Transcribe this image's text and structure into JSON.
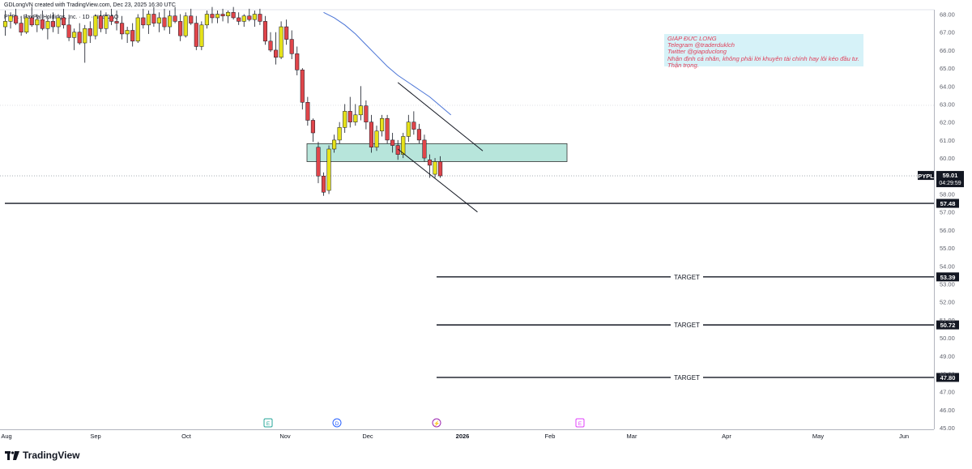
{
  "header": {
    "attribution": "GDLongVN created with TradingView.com, Dec 23, 2025 16:30 UTC",
    "symbol_line": "PYPL · PayPal Holdings, Inc. · 1D · NASDAQ"
  },
  "note": {
    "lines": [
      "GIÁP ĐỨC LONG",
      "Telegram @traderduklch",
      "Twitter @giapduclong",
      "Nhận định cá nhân, không phải lời khuyên tài chính hay lôi kéo đầu tư.",
      "Thận trọng."
    ]
  },
  "brand": {
    "name": "TradingView"
  },
  "colors": {
    "bull": "#e6e21a",
    "bear": "#e0454a",
    "ma": "#4a74d6",
    "zone": "#9fdccf",
    "line": "#131722"
  },
  "chart_data": {
    "type": "candlestick",
    "symbol": "PYPL",
    "timeframe": "1D",
    "exchange": "NASDAQ",
    "y_axis": {
      "range": [
        45,
        68
      ],
      "ticks": [
        "68.00",
        "67.00",
        "66.00",
        "65.00",
        "64.00",
        "63.00",
        "62.00",
        "61.00",
        "60.00",
        "59.00",
        "58.00",
        "57.00",
        "56.00",
        "55.00",
        "54.00",
        "53.00",
        "52.00",
        "51.00",
        "50.00",
        "49.00",
        "48.00",
        "47.00",
        "46.00",
        "45.00"
      ]
    },
    "x_axis": {
      "labels": [
        "Aug",
        "Sep",
        "Oct",
        "Nov",
        "Dec",
        "2026",
        "Feb",
        "Mar",
        "Apr",
        "May",
        "Jun"
      ]
    },
    "price_label": {
      "symbol": "PYPL",
      "price": "59.01",
      "countdown": "04:29:59",
      "value": 59.01
    },
    "horizontal_levels": [
      {
        "value": 57.48,
        "label": "57.48",
        "text": ""
      },
      {
        "value": 53.39,
        "label": "53.39",
        "text": "TARGET"
      },
      {
        "value": 50.72,
        "label": "50.72",
        "text": "TARGET"
      },
      {
        "value": 47.8,
        "label": "47.80",
        "text": "TARGET"
      }
    ],
    "zone": {
      "from": "Nov 7",
      "to": "Jan 26",
      "low": 59.8,
      "high": 60.8
    },
    "event_markers": [
      "E",
      "D",
      "⚡",
      "E"
    ],
    "candles": [
      {
        "o": 67.3,
        "h": 68.2,
        "l": 66.8,
        "c": 67.6
      },
      {
        "o": 67.6,
        "h": 68.1,
        "l": 67.2,
        "c": 67.9
      },
      {
        "o": 67.9,
        "h": 68.3,
        "l": 67.4,
        "c": 67.5
      },
      {
        "o": 67.5,
        "h": 67.9,
        "l": 66.8,
        "c": 67.0
      },
      {
        "o": 67.0,
        "h": 68.0,
        "l": 66.9,
        "c": 67.8
      },
      {
        "o": 67.8,
        "h": 68.4,
        "l": 67.3,
        "c": 67.4
      },
      {
        "o": 67.4,
        "h": 68.0,
        "l": 67.0,
        "c": 67.7
      },
      {
        "o": 67.7,
        "h": 68.2,
        "l": 67.1,
        "c": 67.2
      },
      {
        "o": 67.2,
        "h": 67.9,
        "l": 66.6,
        "c": 67.6
      },
      {
        "o": 67.6,
        "h": 68.1,
        "l": 67.0,
        "c": 67.3
      },
      {
        "o": 67.3,
        "h": 68.0,
        "l": 66.9,
        "c": 67.8
      },
      {
        "o": 67.8,
        "h": 68.3,
        "l": 67.2,
        "c": 67.4
      },
      {
        "o": 67.4,
        "h": 67.8,
        "l": 66.5,
        "c": 66.7
      },
      {
        "o": 66.7,
        "h": 67.2,
        "l": 66.0,
        "c": 67.0
      },
      {
        "o": 67.0,
        "h": 67.5,
        "l": 66.3,
        "c": 66.4
      },
      {
        "o": 66.4,
        "h": 67.4,
        "l": 65.3,
        "c": 67.2
      },
      {
        "o": 67.2,
        "h": 67.6,
        "l": 66.4,
        "c": 66.8
      },
      {
        "o": 66.8,
        "h": 68.0,
        "l": 66.6,
        "c": 67.9
      },
      {
        "o": 67.9,
        "h": 68.2,
        "l": 67.0,
        "c": 67.2
      },
      {
        "o": 67.2,
        "h": 68.1,
        "l": 66.9,
        "c": 67.9
      },
      {
        "o": 67.9,
        "h": 68.3,
        "l": 67.4,
        "c": 67.6
      },
      {
        "o": 67.6,
        "h": 68.2,
        "l": 67.1,
        "c": 67.5
      },
      {
        "o": 67.5,
        "h": 67.9,
        "l": 66.6,
        "c": 66.9
      },
      {
        "o": 66.9,
        "h": 67.3,
        "l": 66.4,
        "c": 67.1
      },
      {
        "o": 67.1,
        "h": 67.5,
        "l": 66.2,
        "c": 66.5
      },
      {
        "o": 66.5,
        "h": 68.0,
        "l": 66.4,
        "c": 67.8
      },
      {
        "o": 67.8,
        "h": 68.3,
        "l": 67.2,
        "c": 67.4
      },
      {
        "o": 67.4,
        "h": 68.2,
        "l": 66.9,
        "c": 68.0
      },
      {
        "o": 68.0,
        "h": 68.4,
        "l": 67.3,
        "c": 67.5
      },
      {
        "o": 67.5,
        "h": 68.1,
        "l": 67.0,
        "c": 67.8
      },
      {
        "o": 67.8,
        "h": 68.3,
        "l": 67.1,
        "c": 67.3
      },
      {
        "o": 67.3,
        "h": 68.2,
        "l": 66.9,
        "c": 67.9
      },
      {
        "o": 67.9,
        "h": 68.4,
        "l": 67.5,
        "c": 67.6
      },
      {
        "o": 67.6,
        "h": 68.0,
        "l": 66.5,
        "c": 66.8
      },
      {
        "o": 66.8,
        "h": 68.1,
        "l": 66.7,
        "c": 67.9
      },
      {
        "o": 67.9,
        "h": 68.3,
        "l": 67.4,
        "c": 67.5
      },
      {
        "o": 67.5,
        "h": 67.9,
        "l": 66.0,
        "c": 66.2
      },
      {
        "o": 66.2,
        "h": 67.6,
        "l": 66.0,
        "c": 67.4
      },
      {
        "o": 67.4,
        "h": 68.2,
        "l": 67.2,
        "c": 68.0
      },
      {
        "o": 68.0,
        "h": 68.4,
        "l": 67.5,
        "c": 67.8
      },
      {
        "o": 67.8,
        "h": 68.2,
        "l": 67.5,
        "c": 68.0
      },
      {
        "o": 68.0,
        "h": 68.3,
        "l": 67.6,
        "c": 67.9
      },
      {
        "o": 67.9,
        "h": 68.2,
        "l": 67.5,
        "c": 68.1
      },
      {
        "o": 68.1,
        "h": 68.4,
        "l": 67.7,
        "c": 67.8
      },
      {
        "o": 67.8,
        "h": 68.1,
        "l": 67.4,
        "c": 67.6
      },
      {
        "o": 67.6,
        "h": 68.0,
        "l": 67.3,
        "c": 67.9
      },
      {
        "o": 67.9,
        "h": 68.3,
        "l": 67.6,
        "c": 67.7
      },
      {
        "o": 67.7,
        "h": 68.2,
        "l": 67.3,
        "c": 68.0
      },
      {
        "o": 68.0,
        "h": 68.3,
        "l": 67.4,
        "c": 67.6
      },
      {
        "o": 67.6,
        "h": 67.9,
        "l": 66.3,
        "c": 66.5
      },
      {
        "o": 66.5,
        "h": 67.0,
        "l": 65.9,
        "c": 66.0
      },
      {
        "o": 66.0,
        "h": 67.0,
        "l": 65.2,
        "c": 65.6
      },
      {
        "o": 65.6,
        "h": 67.6,
        "l": 65.5,
        "c": 67.3
      },
      {
        "o": 67.3,
        "h": 67.7,
        "l": 66.3,
        "c": 66.6
      },
      {
        "o": 66.6,
        "h": 67.1,
        "l": 65.5,
        "c": 65.8
      },
      {
        "o": 65.8,
        "h": 66.2,
        "l": 64.6,
        "c": 64.9
      },
      {
        "o": 64.9,
        "h": 65.0,
        "l": 62.7,
        "c": 63.1
      },
      {
        "o": 63.1,
        "h": 63.4,
        "l": 61.8,
        "c": 62.1
      },
      {
        "o": 62.1,
        "h": 62.2,
        "l": 60.9,
        "c": 61.4
      },
      {
        "o": 60.6,
        "h": 60.9,
        "l": 58.6,
        "c": 59.0
      },
      {
        "o": 59.0,
        "h": 59.2,
        "l": 57.9,
        "c": 58.1
      },
      {
        "o": 58.2,
        "h": 60.7,
        "l": 58.0,
        "c": 60.5
      },
      {
        "o": 60.5,
        "h": 61.3,
        "l": 60.3,
        "c": 61.0
      },
      {
        "o": 61.0,
        "h": 62.0,
        "l": 60.8,
        "c": 61.7
      },
      {
        "o": 61.7,
        "h": 63.0,
        "l": 61.4,
        "c": 62.6
      },
      {
        "o": 62.6,
        "h": 63.4,
        "l": 61.7,
        "c": 62.0
      },
      {
        "o": 62.0,
        "h": 63.0,
        "l": 61.8,
        "c": 62.4
      },
      {
        "o": 62.4,
        "h": 64.0,
        "l": 62.1,
        "c": 62.9
      },
      {
        "o": 62.9,
        "h": 63.2,
        "l": 61.6,
        "c": 62.0
      },
      {
        "o": 62.0,
        "h": 62.4,
        "l": 60.3,
        "c": 60.6
      },
      {
        "o": 60.6,
        "h": 61.8,
        "l": 60.4,
        "c": 61.5
      },
      {
        "o": 61.5,
        "h": 62.4,
        "l": 61.2,
        "c": 62.2
      },
      {
        "o": 62.2,
        "h": 62.4,
        "l": 60.8,
        "c": 61.0
      },
      {
        "o": 61.0,
        "h": 61.4,
        "l": 60.3,
        "c": 60.7
      },
      {
        "o": 60.7,
        "h": 61.0,
        "l": 59.9,
        "c": 60.2
      },
      {
        "o": 60.2,
        "h": 61.4,
        "l": 60.0,
        "c": 61.2
      },
      {
        "o": 61.2,
        "h": 62.4,
        "l": 60.9,
        "c": 62.0
      },
      {
        "o": 62.0,
        "h": 62.6,
        "l": 61.3,
        "c": 61.6
      },
      {
        "o": 61.6,
        "h": 61.9,
        "l": 60.8,
        "c": 61.0
      },
      {
        "o": 61.0,
        "h": 61.3,
        "l": 59.8,
        "c": 60.0
      },
      {
        "o": 59.9,
        "h": 60.2,
        "l": 58.9,
        "c": 59.6
      },
      {
        "o": 59.1,
        "h": 60.0,
        "l": 58.9,
        "c": 59.8
      },
      {
        "o": 59.8,
        "h": 60.1,
        "l": 58.9,
        "c": 59.01
      }
    ],
    "ma_line": [
      {
        "i": 60,
        "v": 68.1
      },
      {
        "i": 62,
        "v": 67.8
      },
      {
        "i": 64,
        "v": 67.4
      },
      {
        "i": 66,
        "v": 66.9
      },
      {
        "i": 68,
        "v": 66.3
      },
      {
        "i": 70,
        "v": 65.7
      },
      {
        "i": 72,
        "v": 65.1
      },
      {
        "i": 74,
        "v": 64.6
      },
      {
        "i": 76,
        "v": 64.2
      },
      {
        "i": 78,
        "v": 63.8
      },
      {
        "i": 80,
        "v": 63.4
      },
      {
        "i": 82,
        "v": 62.9
      },
      {
        "i": 84,
        "v": 62.4
      }
    ],
    "trendlines": [
      {
        "i1": 74,
        "v1": 64.2,
        "i2": 90,
        "v2": 60.4
      },
      {
        "i1": 74,
        "v1": 60.5,
        "i2": 89,
        "v2": 57.0
      }
    ]
  }
}
